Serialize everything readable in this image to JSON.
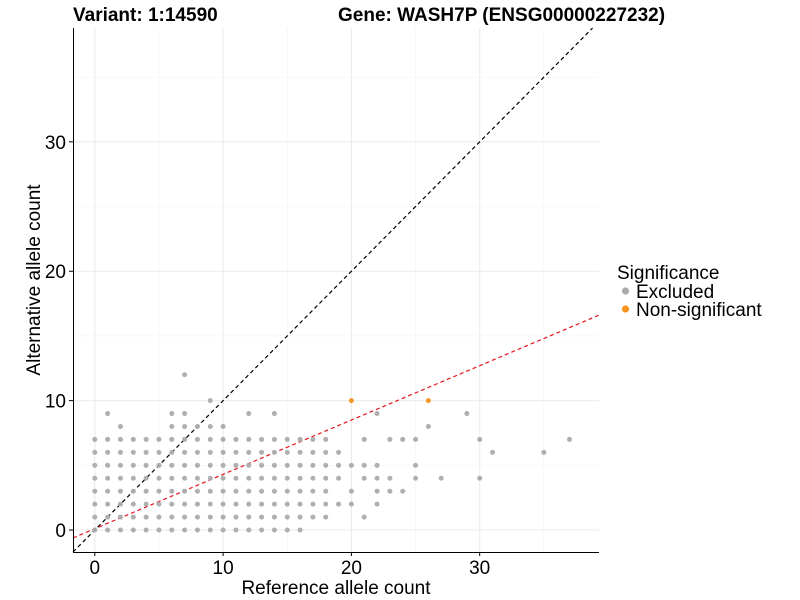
{
  "chart_data": {
    "type": "scatter",
    "title_left": "Variant: 1:14590",
    "title_right": "Gene: WASH7P (ENSG00000227232)",
    "xlabel": "Reference allele count",
    "ylabel": "Alternative allele count",
    "xlim": [
      -1.7,
      39.3
    ],
    "ylim": [
      -1.7,
      38.8
    ],
    "x_ticks": [
      0,
      10,
      20,
      30
    ],
    "y_ticks": [
      0,
      10,
      20,
      30
    ],
    "grid": true,
    "reference_lines": [
      {
        "name": "identity",
        "slope": 1,
        "intercept": 0,
        "color": "#000000",
        "dash": "dashed"
      },
      {
        "name": "fit",
        "slope": 0.42,
        "intercept": 0.1,
        "color": "#e8141b",
        "dash": "dashed"
      }
    ],
    "legend": {
      "title": "Significance",
      "position": "right",
      "entries": [
        {
          "label": "Excluded",
          "color": "#ababab"
        },
        {
          "label": "Non-significant",
          "color": "#f7931e"
        }
      ]
    },
    "series": [
      {
        "name": "Excluded",
        "color": "#ababab",
        "points": [
          [
            0,
            0
          ],
          [
            0,
            1
          ],
          [
            0,
            2
          ],
          [
            0,
            3
          ],
          [
            0,
            4
          ],
          [
            0,
            5
          ],
          [
            0,
            6
          ],
          [
            0,
            7
          ],
          [
            1,
            0
          ],
          [
            1,
            1
          ],
          [
            1,
            2
          ],
          [
            1,
            3
          ],
          [
            1,
            4
          ],
          [
            1,
            5
          ],
          [
            1,
            6
          ],
          [
            1,
            7
          ],
          [
            1,
            9
          ],
          [
            2,
            0
          ],
          [
            2,
            1
          ],
          [
            2,
            2
          ],
          [
            2,
            3
          ],
          [
            2,
            4
          ],
          [
            2,
            5
          ],
          [
            2,
            6
          ],
          [
            2,
            7
          ],
          [
            2,
            8
          ],
          [
            3,
            0
          ],
          [
            3,
            1
          ],
          [
            3,
            2
          ],
          [
            3,
            3
          ],
          [
            3,
            4
          ],
          [
            3,
            5
          ],
          [
            3,
            6
          ],
          [
            3,
            7
          ],
          [
            4,
            0
          ],
          [
            4,
            1
          ],
          [
            4,
            2
          ],
          [
            4,
            3
          ],
          [
            4,
            4
          ],
          [
            4,
            5
          ],
          [
            4,
            6
          ],
          [
            4,
            7
          ],
          [
            5,
            0
          ],
          [
            5,
            1
          ],
          [
            5,
            2
          ],
          [
            5,
            3
          ],
          [
            5,
            4
          ],
          [
            5,
            5
          ],
          [
            5,
            6
          ],
          [
            5,
            7
          ],
          [
            6,
            0
          ],
          [
            6,
            1
          ],
          [
            6,
            2
          ],
          [
            6,
            3
          ],
          [
            6,
            4
          ],
          [
            6,
            5
          ],
          [
            6,
            6
          ],
          [
            6,
            7
          ],
          [
            6,
            8
          ],
          [
            6,
            9
          ],
          [
            7,
            0
          ],
          [
            7,
            1
          ],
          [
            7,
            2
          ],
          [
            7,
            3
          ],
          [
            7,
            4
          ],
          [
            7,
            5
          ],
          [
            7,
            6
          ],
          [
            7,
            7
          ],
          [
            7,
            8
          ],
          [
            7,
            9
          ],
          [
            7,
            12
          ],
          [
            8,
            0
          ],
          [
            8,
            1
          ],
          [
            8,
            2
          ],
          [
            8,
            3
          ],
          [
            8,
            4
          ],
          [
            8,
            5
          ],
          [
            8,
            6
          ],
          [
            8,
            7
          ],
          [
            8,
            8
          ],
          [
            9,
            0
          ],
          [
            9,
            1
          ],
          [
            9,
            2
          ],
          [
            9,
            3
          ],
          [
            9,
            4
          ],
          [
            9,
            5
          ],
          [
            9,
            6
          ],
          [
            9,
            7
          ],
          [
            9,
            8
          ],
          [
            9,
            10
          ],
          [
            10,
            0
          ],
          [
            10,
            1
          ],
          [
            10,
            2
          ],
          [
            10,
            3
          ],
          [
            10,
            4
          ],
          [
            10,
            5
          ],
          [
            10,
            6
          ],
          [
            10,
            7
          ],
          [
            10,
            8
          ],
          [
            11,
            0
          ],
          [
            11,
            1
          ],
          [
            11,
            2
          ],
          [
            11,
            3
          ],
          [
            11,
            4
          ],
          [
            11,
            5
          ],
          [
            11,
            6
          ],
          [
            11,
            7
          ],
          [
            12,
            0
          ],
          [
            12,
            1
          ],
          [
            12,
            2
          ],
          [
            12,
            3
          ],
          [
            12,
            4
          ],
          [
            12,
            5
          ],
          [
            12,
            6
          ],
          [
            12,
            7
          ],
          [
            12,
            9
          ],
          [
            13,
            0
          ],
          [
            13,
            1
          ],
          [
            13,
            2
          ],
          [
            13,
            3
          ],
          [
            13,
            4
          ],
          [
            13,
            5
          ],
          [
            13,
            6
          ],
          [
            13,
            7
          ],
          [
            14,
            0
          ],
          [
            14,
            1
          ],
          [
            14,
            2
          ],
          [
            14,
            3
          ],
          [
            14,
            4
          ],
          [
            14,
            5
          ],
          [
            14,
            6
          ],
          [
            14,
            7
          ],
          [
            14,
            9
          ],
          [
            15,
            0
          ],
          [
            15,
            1
          ],
          [
            15,
            2
          ],
          [
            15,
            3
          ],
          [
            15,
            4
          ],
          [
            15,
            5
          ],
          [
            15,
            6
          ],
          [
            15,
            7
          ],
          [
            16,
            0
          ],
          [
            16,
            1
          ],
          [
            16,
            2
          ],
          [
            16,
            3
          ],
          [
            16,
            4
          ],
          [
            16,
            5
          ],
          [
            16,
            6
          ],
          [
            16,
            7
          ],
          [
            17,
            1
          ],
          [
            17,
            2
          ],
          [
            17,
            3
          ],
          [
            17,
            4
          ],
          [
            17,
            5
          ],
          [
            17,
            6
          ],
          [
            17,
            7
          ],
          [
            18,
            1
          ],
          [
            18,
            2
          ],
          [
            18,
            3
          ],
          [
            18,
            4
          ],
          [
            18,
            5
          ],
          [
            18,
            6
          ],
          [
            18,
            7
          ],
          [
            19,
            2
          ],
          [
            19,
            4
          ],
          [
            19,
            5
          ],
          [
            19,
            6
          ],
          [
            20,
            2
          ],
          [
            20,
            3
          ],
          [
            20,
            5
          ],
          [
            21,
            1
          ],
          [
            21,
            4
          ],
          [
            21,
            5
          ],
          [
            21,
            7
          ],
          [
            22,
            2
          ],
          [
            22,
            3
          ],
          [
            22,
            4
          ],
          [
            22,
            5
          ],
          [
            22,
            9
          ],
          [
            23,
            3
          ],
          [
            23,
            4
          ],
          [
            23,
            7
          ],
          [
            24,
            3
          ],
          [
            24,
            7
          ],
          [
            25,
            4
          ],
          [
            25,
            5
          ],
          [
            25,
            7
          ],
          [
            26,
            8
          ],
          [
            27,
            4
          ],
          [
            29,
            9
          ],
          [
            30,
            4
          ],
          [
            30,
            7
          ],
          [
            31,
            6
          ],
          [
            35,
            6
          ],
          [
            37,
            7
          ]
        ]
      },
      {
        "name": "Non-significant",
        "color": "#f7931e",
        "points": [
          [
            20,
            10
          ],
          [
            26,
            10
          ]
        ]
      }
    ]
  }
}
